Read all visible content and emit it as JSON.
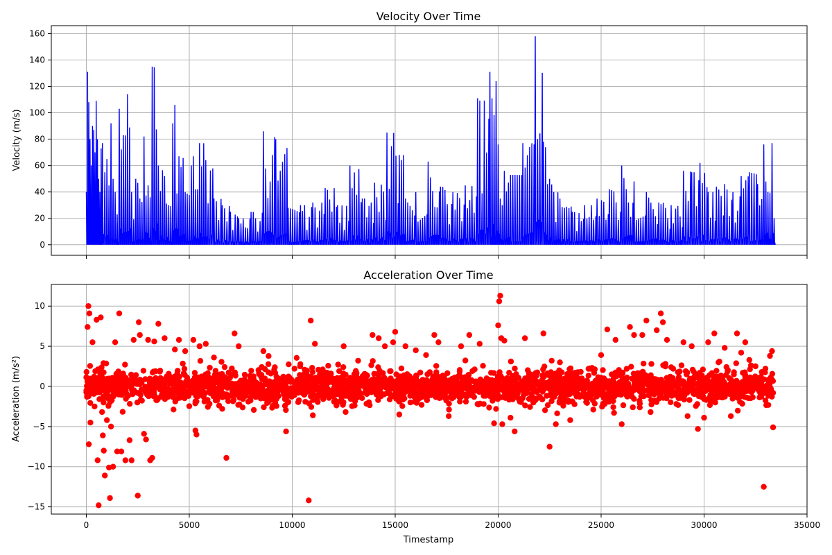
{
  "chart_data": [
    {
      "type": "line",
      "title": "Velocity Over Time",
      "xlabel": "",
      "ylabel": "Velocity (m/s)",
      "xlim": [
        -1700,
        35000
      ],
      "ylim": [
        -8,
        166
      ],
      "xticks": [
        0,
        5000,
        10000,
        15000,
        20000,
        25000,
        30000,
        35000
      ],
      "xtick_labels_visible": false,
      "yticks": [
        0,
        20,
        40,
        60,
        80,
        100,
        120,
        140,
        160
      ],
      "grid": true,
      "series": [
        {
          "color": "#0000ff",
          "x": [
            0,
            60,
            120,
            180,
            240,
            300,
            360,
            420,
            480,
            540,
            600,
            660,
            720,
            780,
            900,
            1000,
            1100,
            1200,
            1300,
            1400,
            1600,
            1800,
            2000,
            2200,
            2400,
            2600,
            2800,
            3000,
            3200,
            3500,
            3800,
            4000,
            4200,
            4300,
            4500,
            4800,
            5100,
            5200,
            5300,
            5500,
            5800,
            6200,
            6600,
            7000,
            7400,
            8000,
            8600,
            9200,
            9800,
            10400,
            10600,
            11000,
            11600,
            12200,
            12800,
            13400,
            14000,
            14600,
            15200,
            15500,
            16000,
            16600,
            17200,
            17800,
            18400,
            19000,
            19600,
            19900,
            20000,
            20100,
            20200,
            20300,
            20600,
            21200,
            21800,
            22200,
            22500,
            22700,
            23000,
            23600,
            24200,
            24800,
            25400,
            26000,
            26600,
            27200,
            27800,
            28400,
            29000,
            29400,
            29800,
            30200,
            30600,
            31000,
            31400,
            31800,
            32200,
            32600,
            32900,
            33100,
            33300,
            33400
          ],
          "y": [
            40,
            131,
            108,
            80,
            60,
            90,
            87,
            70,
            109,
            80,
            50,
            40,
            73,
            77,
            55,
            65,
            45,
            92,
            50,
            40,
            103,
            83,
            114,
            40,
            50,
            35,
            82,
            45,
            135,
            60,
            52,
            30,
            92,
            106,
            67,
            40,
            60,
            67,
            42,
            77,
            64,
            35,
            30,
            25,
            20,
            25,
            86,
            80,
            28,
            30,
            30,
            32,
            43,
            30,
            60,
            35,
            47,
            85,
            68,
            35,
            40,
            63,
            44,
            40,
            45,
            111,
            131,
            124,
            76,
            35,
            30,
            56,
            53,
            77,
            158,
            78,
            50,
            40,
            35,
            25,
            30,
            35,
            42,
            60,
            48,
            40,
            32,
            30,
            56,
            55,
            62,
            40,
            44,
            46,
            40,
            52,
            55,
            46,
            76,
            40,
            77,
            20
          ]
        }
      ]
    },
    {
      "type": "scatter",
      "title": "Acceleration Over Time",
      "xlabel": "Timestamp",
      "ylabel": "Acceleration (m/s²)",
      "xlim": [
        -1700,
        35000
      ],
      "ylim": [
        -15.9,
        12.7
      ],
      "xticks": [
        0,
        5000,
        10000,
        15000,
        20000,
        25000,
        30000,
        35000
      ],
      "yticks": [
        -15,
        -10,
        -5,
        0,
        5,
        10
      ],
      "grid": true,
      "series": [
        {
          "color": "#ff0000",
          "x": [
            0,
            60,
            100,
            120,
            150,
            200,
            300,
            400,
            500,
            550,
            600,
            700,
            800,
            850,
            900,
            1000,
            1100,
            1150,
            1200,
            1300,
            1400,
            1500,
            1600,
            1700,
            1900,
            2100,
            2200,
            2300,
            2500,
            2550,
            2600,
            2800,
            2900,
            3000,
            3100,
            3200,
            3300,
            3500,
            3800,
            4300,
            4500,
            4800,
            5200,
            5300,
            5350,
            5500,
            5800,
            6200,
            6800,
            7200,
            7400,
            8600,
            9700,
            10800,
            10900,
            11000,
            11100,
            12500,
            13200,
            13900,
            14200,
            14500,
            14900,
            15000,
            15200,
            15500,
            16000,
            16500,
            16900,
            17100,
            17600,
            18200,
            18600,
            19000,
            19100,
            19300,
            19800,
            19900,
            20000,
            20050,
            20100,
            20150,
            20200,
            20300,
            20600,
            20800,
            21300,
            22200,
            22500,
            22600,
            22800,
            23000,
            23500,
            24000,
            24500,
            25000,
            25300,
            25700,
            26000,
            26400,
            26600,
            27000,
            27200,
            27400,
            27700,
            27900,
            28000,
            28200,
            28500,
            29000,
            29200,
            29400,
            29700,
            30000,
            30200,
            30500,
            30700,
            31000,
            31300,
            31600,
            31800,
            32000,
            32200,
            32500,
            32800,
            32900,
            33200,
            33300,
            33350
          ],
          "y": [
            -0.5,
            7.4,
            10,
            -7.2,
            9.1,
            -4.5,
            5.5,
            -2.5,
            8.3,
            -9.2,
            -14.8,
            8.6,
            -6.1,
            -8,
            -11.1,
            -4.2,
            -10.1,
            -13.9,
            -5,
            -10,
            5.5,
            -8.1,
            9.1,
            -8.1,
            -9.2,
            -6.7,
            -9.2,
            5.8,
            -13.6,
            8,
            6.4,
            -5.9,
            -6.6,
            5.8,
            -9.2,
            -8.9,
            5.6,
            7.8,
            6,
            4.6,
            5.8,
            4.4,
            5.8,
            -5.5,
            -6,
            5,
            5.3,
            3.6,
            -8.9,
            6.6,
            5,
            4.4,
            -5.6,
            -14.2,
            8.2,
            -3.6,
            5.3,
            5,
            3.2,
            6.4,
            6,
            5,
            5.5,
            6.8,
            -3.5,
            5,
            4.5,
            3.9,
            6.4,
            5.5,
            -3.7,
            5,
            6.4,
            -2.2,
            5.3,
            -2.2,
            -4.6,
            -2.8,
            7.6,
            10.6,
            11.3,
            6,
            -4.7,
            5.7,
            -3.9,
            -5.6,
            6,
            6.6,
            -7.5,
            3.2,
            -4.7,
            3,
            -4.2,
            -1.2,
            2.2,
            3.9,
            7.1,
            5.8,
            -4.7,
            7.4,
            6.4,
            6.4,
            8.2,
            -3.2,
            7,
            9.1,
            8,
            5.8,
            2.2,
            5.5,
            -3.7,
            5,
            -5.3,
            -3.9,
            5.5,
            6.6,
            3,
            4.8,
            -3.7,
            6.6,
            4.2,
            5.5,
            3.3,
            2.5,
            1.8,
            -12.5,
            3.8,
            4.4,
            -5.1
          ]
        }
      ]
    }
  ]
}
